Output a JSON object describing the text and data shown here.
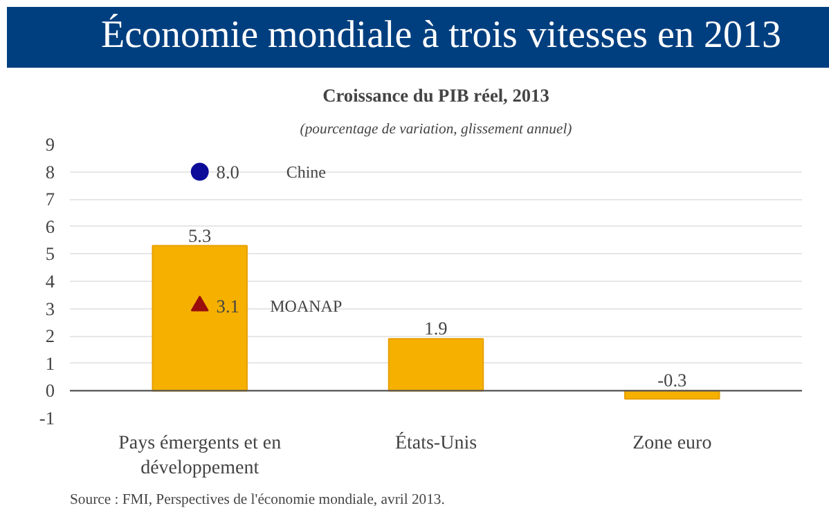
{
  "chart_data": {
    "type": "bar",
    "title": "Économie mondiale à trois vitesses en 2013",
    "subtitle": "Croissance du PIB réel, 2013",
    "annotations": [
      "(pourcentage de variation, glissement annuel)",
      "Source : FMI, Perspectives de l'économie mondiale, avril 2013."
    ],
    "categories": [
      "Pays émergents et en développement",
      "États-Unis",
      "Zone euro"
    ],
    "series": [
      {
        "color": "#f5b000",
        "values": [
          5.3,
          1.9,
          -0.3
        ]
      },
      {
        "type": "scatter",
        "name": "Chine",
        "color": "#0c0c99",
        "marker": "circle",
        "x": [
          "Pays émergents et en développement"
        ],
        "values": [
          8.0
        ],
        "value_labels": [
          "8.0"
        ]
      },
      {
        "type": "scatter",
        "name": "MOANAP",
        "color": "#9a0d0d",
        "marker": "triangle",
        "x": [
          "Pays émergents et en développement"
        ],
        "values": [
          3.1
        ],
        "value_labels": [
          "3.1"
        ]
      }
    ],
    "data_labels": true,
    "ylim": [
      -1,
      9
    ],
    "yticks": [
      -1,
      0,
      1,
      2,
      3,
      4,
      5,
      6,
      7,
      8,
      9
    ],
    "grid": "y"
  }
}
